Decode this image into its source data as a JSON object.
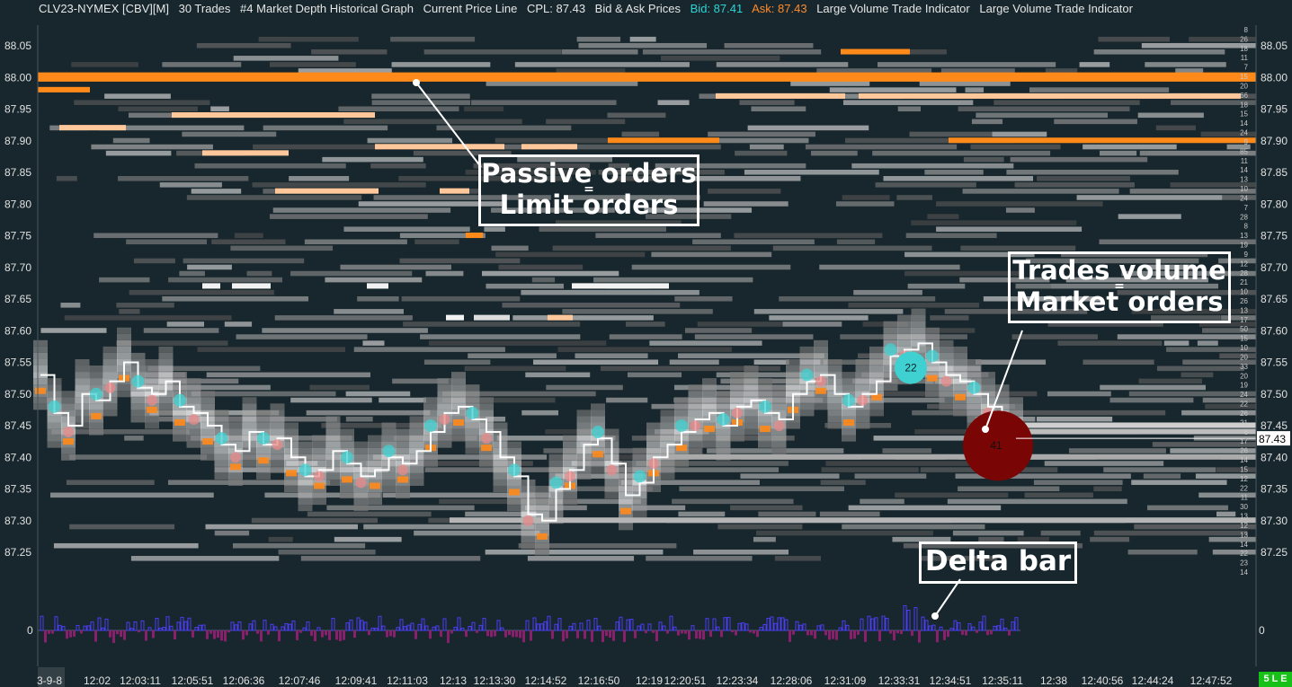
{
  "header": {
    "symbol": "CLV23-NYMEX [CBV][M]",
    "trades": "30 Trades",
    "depth": "#4 Market Depth Historical Graph",
    "cpl_study": "Current Price Line",
    "cpl": "CPL: 87.43",
    "bidask": "Bid & Ask Prices",
    "bid": "Bid: 87.41",
    "ask": "Ask: 87.43",
    "lvti1": "Large Volume Trade Indicator",
    "lvti2": "Large Volume Trade Indicator"
  },
  "annotations": {
    "passive_line1": "Passive orders",
    "passive_eq": "=",
    "passive_line2": "Limit orders",
    "trades_line1": "Trades volume",
    "trades_eq": "=",
    "trades_line2": "Market orders",
    "delta": "Delta bar"
  },
  "footer": {
    "badge": "5 L E"
  },
  "colors": {
    "background": "#17272d",
    "ask_orange": "#ff8a1a",
    "light_orange": "#ffc79a",
    "bid_cyan": "#3fd1d1",
    "sell_pink": "#e88a8a",
    "big_trade": "#7a0505",
    "delta_pos": "#4b3df0",
    "delta_neg": "#8a1f6e"
  },
  "chart_data": {
    "type": "heatmap",
    "y_ticks": [
      "88.05",
      "88.00",
      "87.95",
      "87.90",
      "87.85",
      "87.80",
      "87.75",
      "87.70",
      "87.65",
      "87.60",
      "87.55",
      "87.50",
      "87.45",
      "87.40",
      "87.35",
      "87.30",
      "87.25"
    ],
    "ylim": [
      87.22,
      88.08
    ],
    "x_ticks": [
      "3-9-8",
      "12:02",
      "12:03:11",
      "12:05:51",
      "12:06:36",
      "12:07:46",
      "12:09:41",
      "12:11:03",
      "12:13",
      "12:13:30",
      "12:14:52",
      "12:16:50",
      "12:19",
      "12:20:51",
      "12:23:34",
      "12:28:06",
      "12:31:09",
      "12:33:31",
      "12:34:51",
      "12:35:11",
      "12:38",
      "12:40:56",
      "12:44:24",
      "12:47:52"
    ],
    "current_price": "87.43",
    "bid": 87.41,
    "ask": 87.43,
    "price_path": [
      87.53,
      87.47,
      87.45,
      87.5,
      87.49,
      87.52,
      87.55,
      87.51,
      87.5,
      87.52,
      87.48,
      87.47,
      87.45,
      87.42,
      87.41,
      87.44,
      87.42,
      87.43,
      87.4,
      87.37,
      87.38,
      87.41,
      87.39,
      87.37,
      87.38,
      87.4,
      87.39,
      87.41,
      87.44,
      87.47,
      87.48,
      87.46,
      87.44,
      87.4,
      87.37,
      87.31,
      87.3,
      87.35,
      87.38,
      87.42,
      87.43,
      87.39,
      87.34,
      87.36,
      87.4,
      87.42,
      87.44,
      87.46,
      87.47,
      87.45,
      87.48,
      87.49,
      87.47,
      87.46,
      87.5,
      87.52,
      87.53,
      87.5,
      87.48,
      87.5,
      87.52,
      87.56,
      87.57,
      87.58,
      87.55,
      87.53,
      87.52,
      87.5,
      87.48,
      87.46,
      87.44
    ],
    "right_depth_sizes": [
      "8",
      "26",
      "18",
      "11",
      "7",
      "15",
      "20",
      "66",
      "18",
      "15",
      "14",
      "24",
      "9",
      "85",
      "11",
      "14",
      "13",
      "10",
      "24",
      "7",
      "28",
      "8",
      "13",
      "19",
      "9",
      "12",
      "28",
      "21",
      "10",
      "26",
      "13",
      "17",
      "50",
      "15",
      "10",
      "20",
      "33",
      "20",
      "19",
      "24",
      "22",
      "26",
      "21",
      "6",
      "17",
      "26",
      "14",
      "15",
      "12",
      "22",
      "11",
      "30",
      "13",
      "12",
      "13",
      "14",
      "22",
      "23",
      "14"
    ],
    "trade_bubbles": [
      {
        "label": "22",
        "price": 87.55,
        "side": "buy"
      },
      {
        "label": "41",
        "price": 87.41,
        "side": "sell"
      }
    ],
    "delta_zero_label": "0"
  }
}
